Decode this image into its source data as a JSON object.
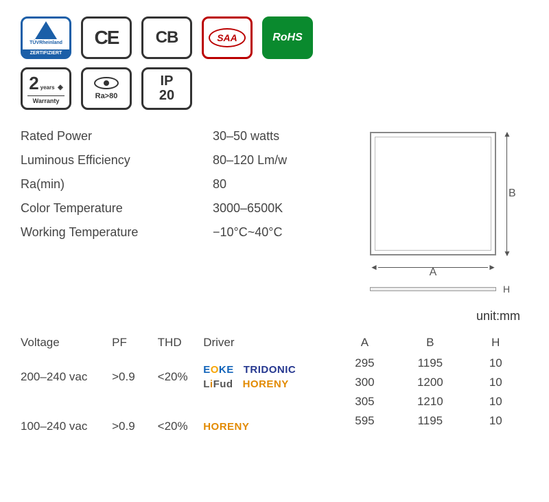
{
  "badges": {
    "tuv": {
      "label": "TÜVRheinland",
      "cert": "ZERTIFIZIERT"
    },
    "ce": "CE",
    "cb": "CB",
    "saa": "SAA",
    "rohs": "RoHS",
    "warranty": {
      "num": "2",
      "years": "years",
      "label": "Warranty"
    },
    "ra": "Ra>80",
    "ip": {
      "l1": "IP",
      "l2": "20"
    }
  },
  "specs": [
    {
      "label": "Rated Power",
      "value": "30–50 watts"
    },
    {
      "label": "Luminous Efficiency",
      "value": "80–120 Lm/w"
    },
    {
      "label": "Ra(min)",
      "value": "80"
    },
    {
      "label": "Color Temperature",
      "value": "3000–6500K"
    },
    {
      "label": "Working Temperature",
      "value": "−10°C~40°C"
    }
  ],
  "diagram": {
    "a": "A",
    "b": "B",
    "h": "H",
    "unit": "unit:mm"
  },
  "driver_table": {
    "headers": {
      "v": "Voltage",
      "pf": "PF",
      "thd": "THD",
      "drv": "Driver"
    },
    "rows": [
      {
        "v": "200–240 vac",
        "pf": ">0.9",
        "thd": "<20%",
        "drivers": [
          "EOKE",
          "TRIDONIC",
          "Lifud",
          "HORENY"
        ]
      },
      {
        "v": "100–240 vac",
        "pf": ">0.9",
        "thd": "<20%",
        "drivers": [
          "HORENY"
        ]
      }
    ]
  },
  "dim_table": {
    "headers": {
      "a": "A",
      "b": "B",
      "h": "H"
    },
    "rows": [
      {
        "a": "295",
        "b": "1195",
        "h": "10"
      },
      {
        "a": "300",
        "b": "1200",
        "h": "10"
      },
      {
        "a": "305",
        "b": "1210",
        "h": "10"
      },
      {
        "a": "595",
        "b": "1195",
        "h": "10"
      }
    ]
  },
  "colors": {
    "tuv": "#1b5fa8",
    "saa": "#b00000",
    "rohs": "#0a8a2e",
    "eoke": "#1163b9",
    "eoke_o": "#f7a400",
    "tridonic": "#25378f",
    "lifud": "#555555",
    "lifud_i": "#d98600",
    "horeny": "#e28a00"
  }
}
